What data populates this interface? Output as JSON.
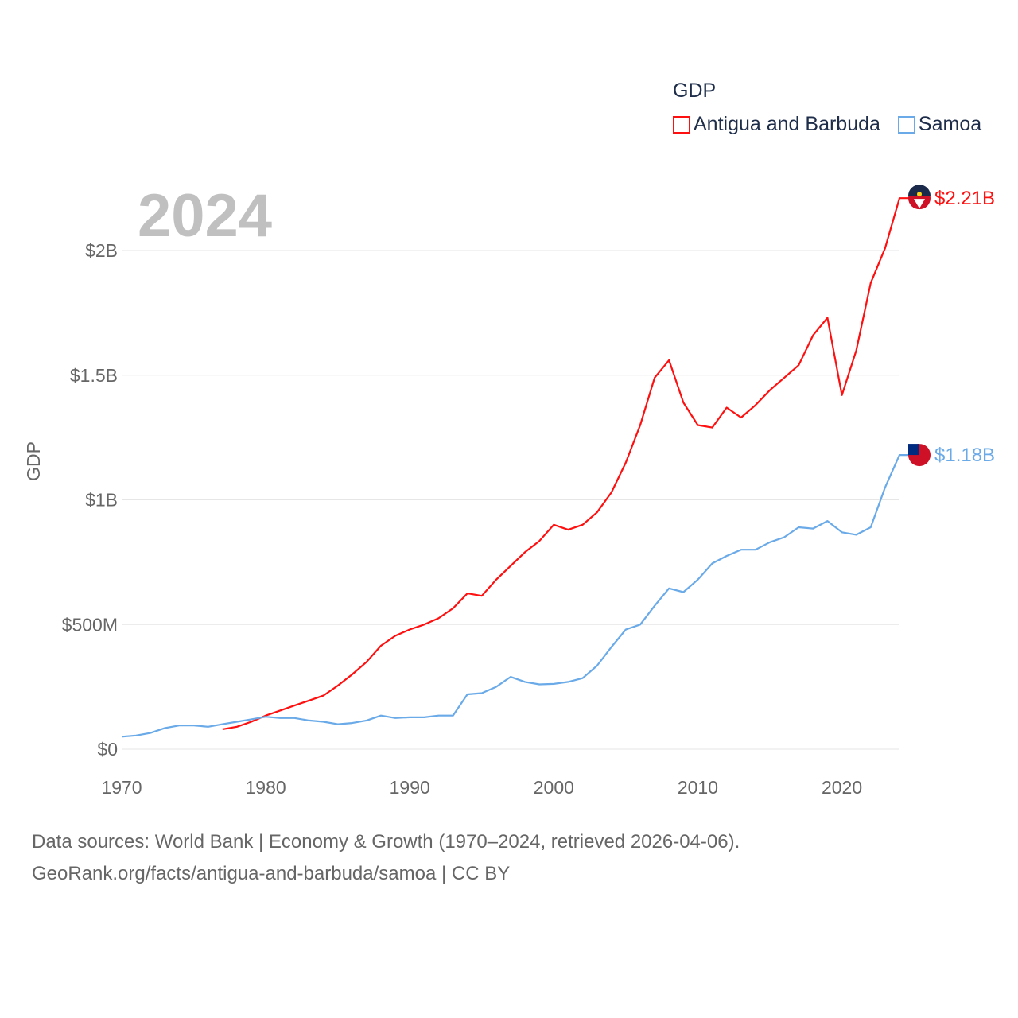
{
  "chart_data": {
    "type": "line",
    "title": "GDP",
    "ylabel": "GDP",
    "xlabel": "",
    "year_label": "2024",
    "xlim": [
      1970,
      2024
    ],
    "ylim": [
      0,
      2.0
    ],
    "x_ticks": [
      1970,
      1980,
      1990,
      2000,
      2010,
      2020
    ],
    "y_ticks": [
      {
        "v": 0,
        "label": "$0"
      },
      {
        "v": 0.5,
        "label": "$500M"
      },
      {
        "v": 1.0,
        "label": "$1B"
      },
      {
        "v": 1.5,
        "label": "$1.5B"
      },
      {
        "v": 2.0,
        "label": "$2B"
      }
    ],
    "grid": true,
    "legend_position": "top-right",
    "series": [
      {
        "name": "Antigua and Barbuda",
        "color": "#ff1010",
        "end_label": "$2.21B",
        "start_year": 1977,
        "values": [
          0.08,
          0.09,
          0.11,
          0.135,
          0.155,
          0.175,
          0.195,
          0.215,
          0.255,
          0.3,
          0.35,
          0.415,
          0.455,
          0.48,
          0.5,
          0.525,
          0.565,
          0.625,
          0.615,
          0.68,
          0.735,
          0.79,
          0.835,
          0.9,
          0.88,
          0.9,
          0.95,
          1.03,
          1.15,
          1.3,
          1.49,
          1.56,
          1.39,
          1.3,
          1.29,
          1.37,
          1.33,
          1.38,
          1.44,
          1.49,
          1.54,
          1.66,
          1.73,
          1.42,
          1.6,
          1.87,
          2.01,
          2.21
        ]
      },
      {
        "name": "Samoa",
        "color": "#6aaae8",
        "end_label": "$1.18B",
        "start_year": 1970,
        "values": [
          0.05,
          0.055,
          0.065,
          0.085,
          0.095,
          0.095,
          0.09,
          0.1,
          0.11,
          0.12,
          0.13,
          0.125,
          0.125,
          0.115,
          0.11,
          0.1,
          0.105,
          0.115,
          0.135,
          0.125,
          0.128,
          0.128,
          0.135,
          0.135,
          0.22,
          0.225,
          0.25,
          0.29,
          0.27,
          0.26,
          0.262,
          0.27,
          0.285,
          0.335,
          0.41,
          0.48,
          0.5,
          0.575,
          0.645,
          0.63,
          0.68,
          0.745,
          0.775,
          0.8,
          0.8,
          0.83,
          0.85,
          0.89,
          0.885,
          0.915,
          0.87,
          0.86,
          0.89,
          1.05,
          1.18
        ]
      }
    ]
  },
  "footer": {
    "line1": "Data sources: World Bank | Economy & Growth (1970–2024, retrieved 2026-04-06).",
    "line2": "GeoRank.org/facts/antigua-and-barbuda/samoa | CC BY"
  }
}
